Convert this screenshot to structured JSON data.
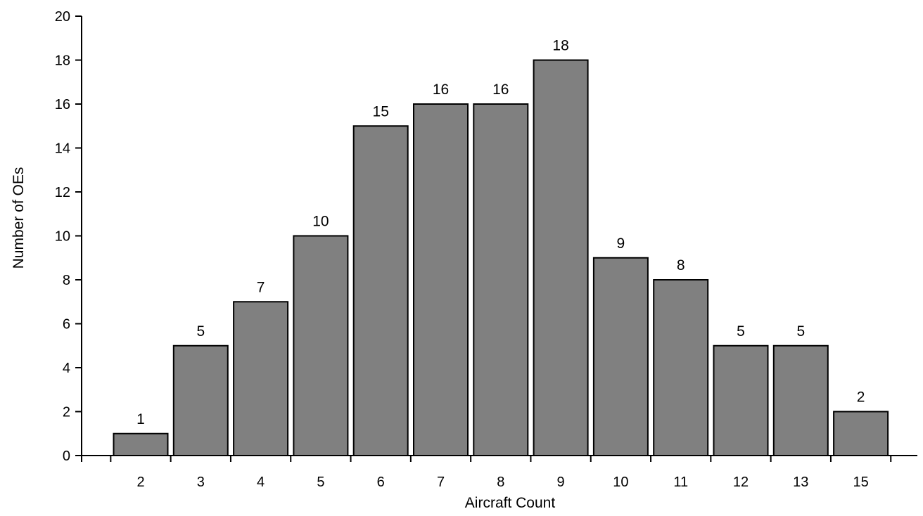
{
  "chart_data": {
    "type": "bar",
    "title": "",
    "xlabel": "Aircraft Count",
    "ylabel": "Number of OEs",
    "categories": [
      "2",
      "3",
      "4",
      "5",
      "6",
      "7",
      "8",
      "9",
      "10",
      "11",
      "12",
      "13",
      "15"
    ],
    "values": [
      1,
      5,
      7,
      10,
      15,
      16,
      16,
      18,
      9,
      8,
      5,
      5,
      2
    ],
    "data_labels": [
      "1",
      "5",
      "7",
      "10",
      "15",
      "16",
      "16",
      "18",
      "9",
      "8",
      "5",
      "5",
      "2"
    ],
    "ylim": [
      0,
      20
    ],
    "yticks": [
      "0",
      "2",
      "4",
      "6",
      "8",
      "10",
      "12",
      "14",
      "16",
      "18",
      "20"
    ],
    "grid": false,
    "legend": "none",
    "bar_color": "#808080",
    "bar_edge_color": "#000000"
  }
}
